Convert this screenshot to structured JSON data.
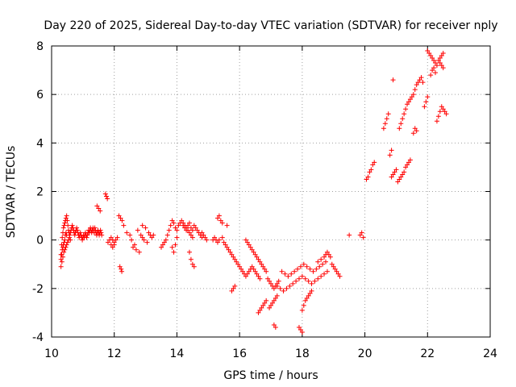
{
  "chart_data": {
    "type": "scatter",
    "title": "Day 220 of 2025, Sidereal Day-to-day VTEC variation (SDTVAR) for receiver nply",
    "xlabel": "GPS time / hours",
    "ylabel": "SDTVAR / TECUs",
    "xlim": [
      10,
      24
    ],
    "ylim": [
      -4,
      8
    ],
    "xticks": [
      10,
      12,
      14,
      16,
      18,
      20,
      22,
      24
    ],
    "yticks": [
      -4,
      -2,
      0,
      2,
      4,
      6,
      8
    ],
    "grid": true,
    "marker": "+",
    "color": "#ff0000",
    "series": [
      {
        "name": "SDTVAR",
        "x": [
          10.3,
          10.32,
          10.34,
          10.36,
          10.38,
          10.4,
          10.42,
          10.44,
          10.46,
          10.48,
          10.5,
          10.52,
          10.54,
          10.56,
          10.58,
          10.6,
          10.62,
          10.64,
          10.66,
          10.68,
          10.7,
          10.72,
          10.74,
          10.76,
          10.78,
          10.8,
          10.82,
          10.84,
          10.86,
          10.88,
          10.9,
          10.92,
          10.94,
          10.96,
          10.98,
          11.0,
          11.02,
          11.04,
          11.06,
          11.08,
          11.1,
          11.12,
          11.14,
          11.16,
          11.18,
          11.2,
          11.22,
          11.24,
          11.26,
          11.28,
          11.3,
          11.32,
          11.34,
          11.36,
          11.38,
          11.4,
          11.42,
          11.44,
          11.46,
          11.48,
          11.5,
          11.52,
          11.54,
          11.56,
          11.58,
          11.6,
          10.3,
          10.33,
          10.36,
          10.39,
          10.42,
          10.45,
          10.48,
          10.51,
          10.54,
          10.57,
          10.6,
          10.3,
          10.32,
          10.34,
          10.36,
          10.38,
          10.4,
          10.42,
          10.44,
          10.46,
          10.48,
          11.45,
          11.5,
          11.55,
          11.72,
          11.75,
          11.78,
          11.8,
          11.85,
          11.9,
          11.95,
          12.0,
          12.05,
          12.1,
          11.9,
          11.95,
          12.0,
          12.15,
          12.2,
          12.25,
          12.3,
          12.18,
          12.22,
          12.24,
          12.4,
          12.5,
          12.6,
          12.7,
          12.8,
          12.9,
          13.0,
          12.55,
          12.65,
          12.75,
          12.85,
          12.9,
          12.95,
          13.05,
          13.1,
          13.15,
          13.2,
          13.25,
          13.5,
          13.55,
          13.6,
          13.65,
          13.7,
          13.75,
          13.8,
          13.85,
          13.9,
          13.95,
          14.0,
          14.05,
          14.1,
          14.15,
          14.2,
          14.25,
          14.3,
          14.35,
          14.4,
          14.45,
          14.5,
          14.55,
          14.6,
          14.65,
          14.7,
          14.75,
          14.8,
          13.85,
          13.9,
          13.95,
          14.0,
          14.2,
          14.25,
          14.3,
          14.35,
          14.4,
          14.45,
          14.5,
          14.4,
          14.45,
          14.5,
          14.55,
          14.8,
          14.85,
          14.9,
          14.95,
          15.15,
          15.2,
          15.25,
          15.3,
          15.35,
          15.45,
          15.3,
          15.35,
          15.4,
          15.45,
          15.6,
          15.5,
          15.55,
          15.6,
          15.65,
          15.7,
          15.75,
          15.8,
          15.85,
          15.9,
          15.95,
          16.0,
          16.05,
          16.1,
          16.15,
          16.2,
          16.25,
          16.3,
          16.35,
          16.4,
          16.45,
          16.5,
          16.55,
          16.6,
          16.65,
          15.75,
          15.8,
          15.85,
          16.2,
          16.25,
          16.3,
          16.35,
          16.4,
          16.45,
          16.5,
          16.55,
          16.6,
          16.65,
          16.7,
          16.75,
          16.8,
          16.85,
          16.6,
          16.65,
          16.7,
          16.75,
          16.8,
          16.85,
          16.9,
          16.95,
          17.0,
          17.05,
          17.1,
          17.15,
          17.2,
          17.25,
          16.95,
          17.0,
          17.05,
          17.1,
          17.15,
          17.2,
          17.1,
          17.15,
          17.2,
          17.3,
          17.4,
          17.5,
          17.6,
          17.7,
          17.8,
          17.9,
          18.0,
          18.1,
          18.2,
          18.3,
          18.4,
          18.5,
          18.6,
          18.7,
          18.8,
          17.35,
          17.45,
          17.55,
          17.65,
          17.75,
          17.85,
          17.95,
          18.05,
          18.15,
          18.25,
          18.35,
          18.45,
          18.55,
          18.65,
          18.75,
          17.9,
          17.95,
          18.0,
          18.0,
          18.05,
          18.1,
          18.15,
          18.2,
          18.25,
          18.3,
          18.5,
          18.6,
          18.7,
          18.75,
          18.8,
          18.85,
          18.9,
          18.95,
          19.0,
          19.05,
          19.1,
          19.15,
          19.2,
          19.5,
          19.85,
          19.9,
          19.95,
          20.05,
          20.1,
          20.15,
          20.2,
          20.25,
          20.3,
          20.6,
          20.65,
          20.7,
          20.75,
          20.8,
          20.85,
          20.9,
          20.85,
          20.9,
          20.95,
          21.0,
          21.05,
          21.1,
          21.15,
          21.2,
          21.25,
          21.3,
          21.35,
          21.4,
          21.45,
          21.1,
          21.15,
          21.2,
          21.25,
          21.3,
          21.35,
          21.4,
          21.45,
          21.5,
          21.55,
          21.6,
          21.65,
          21.7,
          21.75,
          21.8,
          21.85,
          21.55,
          21.6,
          21.65,
          21.9,
          21.95,
          22.0,
          22.0,
          22.05,
          22.1,
          22.15,
          22.2,
          22.25,
          22.3,
          22.35,
          22.4,
          22.45,
          22.5,
          22.1,
          22.15,
          22.2,
          22.25,
          22.3,
          22.35,
          22.4,
          22.45,
          22.5,
          22.55,
          22.6,
          22.4,
          22.45,
          22.5
        ],
        "y": [
          -0.6,
          -0.2,
          0.1,
          0.3,
          0.5,
          0.6,
          0.7,
          0.8,
          0.9,
          1.0,
          0.8,
          0.6,
          0.4,
          0.3,
          0.2,
          0.3,
          0.4,
          0.5,
          0.6,
          0.5,
          0.4,
          0.3,
          0.2,
          0.3,
          0.4,
          0.5,
          0.4,
          0.3,
          0.2,
          0.1,
          0.2,
          0.3,
          0.2,
          0.1,
          0.0,
          0.1,
          0.2,
          0.1,
          0.2,
          0.3,
          0.2,
          0.1,
          0.2,
          0.3,
          0.4,
          0.3,
          0.4,
          0.5,
          0.4,
          0.3,
          0.4,
          0.5,
          0.4,
          0.3,
          0.5,
          0.4,
          0.3,
          0.2,
          0.3,
          0.4,
          0.3,
          0.2,
          0.3,
          0.4,
          0.3,
          0.2,
          -1.1,
          -0.9,
          -0.7,
          -0.5,
          -0.4,
          -0.3,
          -0.2,
          -0.1,
          0.0,
          0.1,
          0.0,
          -0.8,
          -0.6,
          -0.4,
          -0.3,
          -0.2,
          -0.1,
          0.0,
          0.2,
          0.3,
          0.2,
          1.4,
          1.3,
          1.2,
          1.9,
          1.8,
          1.7,
          -0.1,
          0.0,
          0.1,
          0.0,
          -0.1,
          0.0,
          0.1,
          -0.2,
          -0.3,
          -0.2,
          1.0,
          0.9,
          0.8,
          0.6,
          -1.1,
          -1.2,
          -1.3,
          0.3,
          0.2,
          -0.3,
          -0.4,
          -0.5,
          0.6,
          0.5,
          0.0,
          -0.2,
          0.4,
          0.2,
          0.1,
          0.0,
          -0.1,
          0.3,
          0.2,
          0.1,
          0.2,
          -0.3,
          -0.2,
          -0.1,
          0.0,
          0.2,
          0.4,
          0.6,
          0.8,
          0.7,
          0.5,
          0.4,
          0.6,
          0.7,
          0.8,
          0.6,
          0.5,
          0.4,
          0.6,
          0.7,
          0.5,
          0.4,
          0.6,
          0.5,
          0.4,
          0.3,
          0.2,
          0.1,
          -0.3,
          -0.5,
          -0.2,
          0.1,
          0.7,
          0.6,
          0.5,
          0.4,
          0.3,
          0.2,
          0.1,
          -0.5,
          -0.8,
          -1.0,
          -1.1,
          0.3,
          0.2,
          0.1,
          0.0,
          0.0,
          0.1,
          0.0,
          -0.1,
          0.0,
          0.1,
          0.9,
          1.0,
          0.8,
          0.7,
          0.6,
          -0.1,
          -0.2,
          -0.3,
          -0.4,
          -0.5,
          -0.6,
          -0.7,
          -0.8,
          -0.9,
          -1.0,
          -1.1,
          -1.2,
          -1.3,
          -1.4,
          -1.5,
          -1.4,
          -1.3,
          -1.2,
          -1.1,
          -1.2,
          -1.3,
          -1.4,
          -1.5,
          -1.6,
          -2.1,
          -2.0,
          -1.9,
          0.0,
          -0.1,
          -0.2,
          -0.3,
          -0.4,
          -0.5,
          -0.6,
          -0.7,
          -0.8,
          -0.9,
          -1.0,
          -1.1,
          -1.2,
          -1.3,
          -3.0,
          -2.9,
          -2.8,
          -2.7,
          -2.6,
          -2.5,
          -1.6,
          -1.7,
          -1.8,
          -1.9,
          -2.0,
          -1.9,
          -1.8,
          -1.7,
          -2.8,
          -2.7,
          -2.6,
          -2.5,
          -2.4,
          -2.3,
          -3.5,
          -3.6,
          -1.9,
          -2.0,
          -2.1,
          -2.0,
          -1.9,
          -1.8,
          -1.7,
          -1.6,
          -1.5,
          -1.6,
          -1.7,
          -1.8,
          -1.7,
          -1.6,
          -1.5,
          -1.4,
          -1.3,
          -1.3,
          -1.4,
          -1.5,
          -1.4,
          -1.3,
          -1.2,
          -1.1,
          -1.0,
          -1.1,
          -1.2,
          -1.3,
          -1.2,
          -1.1,
          -1.0,
          -0.9,
          -3.6,
          -3.7,
          -3.8,
          -2.9,
          -2.7,
          -2.5,
          -2.4,
          -2.3,
          -2.2,
          -2.1,
          -0.9,
          -0.8,
          -0.7,
          -0.6,
          -0.5,
          -0.6,
          -0.7,
          -1.0,
          -1.1,
          -1.2,
          -1.3,
          -1.4,
          -1.5,
          0.2,
          0.2,
          0.3,
          0.1,
          2.5,
          2.6,
          2.8,
          2.9,
          3.1,
          3.2,
          4.6,
          4.8,
          5.0,
          5.2,
          3.5,
          3.7,
          6.6,
          2.6,
          2.7,
          2.8,
          2.9,
          2.4,
          2.5,
          2.6,
          2.7,
          2.8,
          3.0,
          3.1,
          3.2,
          3.3,
          4.6,
          4.8,
          5.0,
          5.2,
          5.4,
          5.6,
          5.7,
          5.8,
          5.9,
          6.0,
          6.2,
          6.4,
          6.5,
          6.6,
          6.7,
          6.5,
          4.4,
          4.6,
          4.5,
          5.5,
          5.7,
          5.9,
          7.8,
          7.7,
          7.6,
          7.5,
          7.4,
          7.3,
          7.2,
          7.4,
          7.5,
          7.6,
          7.7,
          6.8,
          7.0,
          7.1,
          6.9,
          4.9,
          5.1,
          5.3,
          5.5,
          5.4,
          5.3,
          5.2,
          7.3,
          7.2,
          7.1
        ]
      }
    ]
  }
}
